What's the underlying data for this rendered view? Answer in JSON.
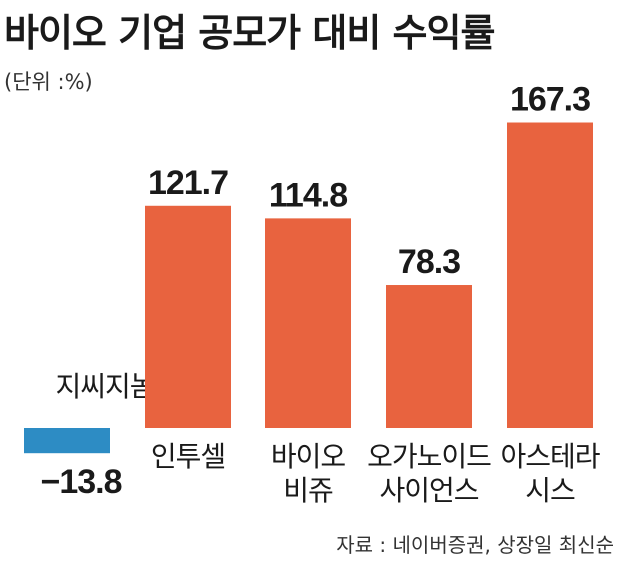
{
  "chart_data": {
    "type": "bar",
    "title": "바이오 기업 공모가 대비 수익률",
    "unit_note": "(단위 :%)",
    "source": "자료 : 네이버증권, 상장일 최신순",
    "categories": [
      [
        "지씨지놈"
      ],
      [
        "인투셀"
      ],
      [
        "바이오",
        "비쥬"
      ],
      [
        "오가노이드",
        "사이언스"
      ],
      [
        "아스테라",
        "시스"
      ]
    ],
    "values": [
      -13.8,
      121.7,
      114.8,
      78.3,
      167.3
    ],
    "value_labels": [
      "−13.8",
      "121.7",
      "114.8",
      "78.3",
      "167.3"
    ],
    "colors": {
      "positive": "#E8633F",
      "negative": "#2D8CC4"
    },
    "grid": false,
    "legend": "none"
  }
}
